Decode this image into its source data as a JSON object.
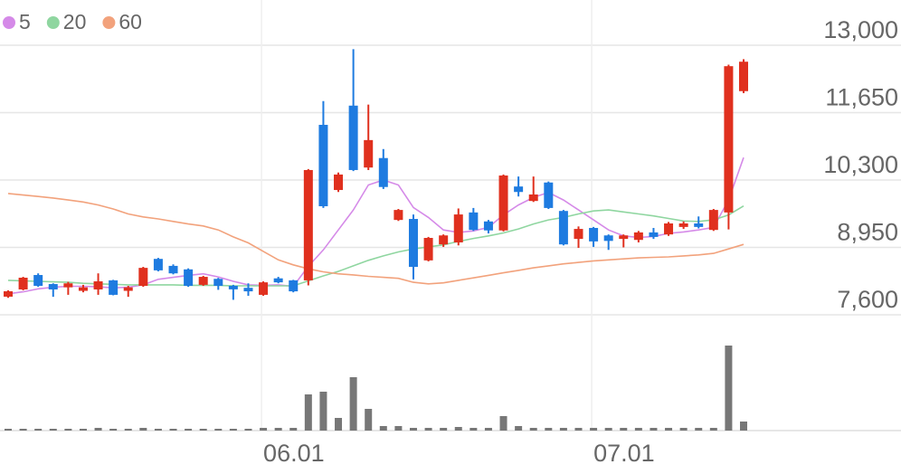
{
  "chart_data": {
    "type": "candlestick",
    "categories": [
      null,
      null,
      null,
      null,
      null,
      null,
      null,
      null,
      null,
      null,
      null,
      null,
      null,
      null,
      null,
      null,
      null,
      "06.01",
      null,
      null,
      null,
      null,
      null,
      null,
      null,
      null,
      null,
      null,
      null,
      null,
      null,
      null,
      null,
      null,
      null,
      null,
      null,
      null,
      null,
      "07.01",
      null,
      null,
      null,
      null,
      null,
      null,
      null,
      null,
      null,
      null
    ],
    "open": [
      7963,
      8108,
      8397,
      8216,
      8150,
      8080,
      8108,
      8290,
      8080,
      8180,
      8720,
      8580,
      8510,
      8200,
      8320,
      8180,
      8140,
      8000,
      8330,
      8290,
      8290,
      11405,
      10100,
      11790,
      10550,
      10740,
      9500,
      9520,
      8690,
      9010,
      9050,
      9650,
      9470,
      9290,
      10170,
      9880,
      10250,
      9680,
      9120,
      9340,
      9190,
      9120,
      9100,
      9250,
      9210,
      9360,
      9430,
      9300,
      9650,
      12080
    ],
    "high": [
      8090,
      8360,
      8430,
      8230,
      8260,
      8200,
      8430,
      8300,
      8180,
      8560,
      8740,
      8610,
      8530,
      8380,
      8340,
      8200,
      8230,
      8270,
      8360,
      8300,
      10520,
      11880,
      10450,
      12920,
      11810,
      10920,
      9720,
      9610,
      9160,
      9210,
      9730,
      9740,
      9500,
      10410,
      10370,
      10370,
      10270,
      9700,
      9370,
      9360,
      9210,
      9210,
      9280,
      9340,
      9460,
      9470,
      9570,
      9720,
      12610,
      12720
    ],
    "low": [
      7940,
      8090,
      8160,
      7960,
      8000,
      8050,
      8000,
      7990,
      7960,
      8160,
      8470,
      8410,
      8160,
      8180,
      8100,
      7900,
      7980,
      7980,
      8230,
      8050,
      8190,
      9740,
      10060,
      10480,
      10500,
      10120,
      9480,
      8310,
      8670,
      8960,
      8990,
      9280,
      9230,
      9270,
      9970,
      9860,
      9720,
      8990,
      8940,
      8960,
      8900,
      8950,
      9050,
      9120,
      9180,
      9320,
      9330,
      9280,
      9310,
      12040
    ],
    "close": [
      8071,
      8343,
      8180,
      8108,
      8230,
      8150,
      8270,
      8000,
      8150,
      8540,
      8490,
      8430,
      8180,
      8360,
      8180,
      8110,
      8070,
      8250,
      8250,
      8070,
      10500,
      9775,
      10410,
      10500,
      11100,
      10160,
      9700,
      8560,
      9140,
      9190,
      9610,
      9300,
      9290,
      10390,
      10060,
      10010,
      9740,
      9010,
      9320,
      9070,
      9080,
      9190,
      9250,
      9160,
      9430,
      9430,
      9360,
      9700,
      12580,
      12670
    ],
    "volume": [
      2,
      2,
      2,
      2,
      2,
      2,
      3,
      2,
      2,
      3,
      2,
      2,
      2,
      2,
      2,
      2,
      2,
      3,
      3,
      3,
      40,
      43,
      14,
      59,
      24,
      5,
      5,
      3,
      3,
      3,
      4,
      3,
      3,
      16,
      5,
      3,
      3,
      3,
      3,
      3,
      3,
      3,
      3,
      3,
      3,
      3,
      3,
      3,
      94,
      10
    ],
    "up_color": "#e0301e",
    "down_color": "#1e7be0",
    "volume_color": "#777777",
    "series": [
      {
        "name": "5",
        "type": "line",
        "color": "#d58ae8",
        "values": [
          8020,
          8060,
          8120,
          8150,
          8170,
          8170,
          8160,
          8140,
          8150,
          8200,
          8310,
          8350,
          8390,
          8420,
          8360,
          8270,
          8200,
          8190,
          8200,
          8170,
          8570,
          8900,
          9300,
          9700,
          10200,
          10300,
          10200,
          9750,
          9550,
          9300,
          9250,
          9280,
          9350,
          9600,
          9800,
          9950,
          10050,
          9900,
          9700,
          9500,
          9300,
          9180,
          9150,
          9170,
          9230,
          9260,
          9300,
          9350,
          9900,
          10750
        ]
      },
      {
        "name": "20",
        "type": "line",
        "color": "#8fd6a0",
        "values": [
          8290,
          8280,
          8270,
          8260,
          8250,
          8230,
          8220,
          8210,
          8200,
          8200,
          8200,
          8200,
          8190,
          8190,
          8190,
          8180,
          8180,
          8180,
          8180,
          8180,
          8280,
          8380,
          8470,
          8580,
          8690,
          8780,
          8860,
          8920,
          8960,
          9000,
          9070,
          9130,
          9180,
          9240,
          9320,
          9420,
          9500,
          9550,
          9620,
          9680,
          9700,
          9660,
          9620,
          9580,
          9530,
          9480,
          9470,
          9500,
          9600,
          9780
        ]
      },
      {
        "name": "60",
        "type": "line",
        "color": "#f2a27c",
        "values": [
          10030,
          10000,
          9970,
          9940,
          9900,
          9860,
          9800,
          9720,
          9620,
          9560,
          9520,
          9470,
          9420,
          9380,
          9300,
          9160,
          9040,
          8870,
          8700,
          8600,
          8520,
          8460,
          8420,
          8400,
          8370,
          8350,
          8330,
          8250,
          8220,
          8240,
          8290,
          8340,
          8390,
          8440,
          8490,
          8540,
          8580,
          8620,
          8650,
          8680,
          8700,
          8720,
          8740,
          8750,
          8760,
          8780,
          8800,
          8830,
          8920,
          9010
        ]
      }
    ],
    "ylim": [
      7600,
      13000
    ],
    "yticks": [
      {
        "value": 7600,
        "label": "7,600"
      },
      {
        "value": 8950,
        "label": "8,950"
      },
      {
        "value": 10300,
        "label": "10,300"
      },
      {
        "value": 11650,
        "label": "11,650"
      },
      {
        "value": 13000,
        "label": "13,000"
      }
    ],
    "grid": true
  }
}
